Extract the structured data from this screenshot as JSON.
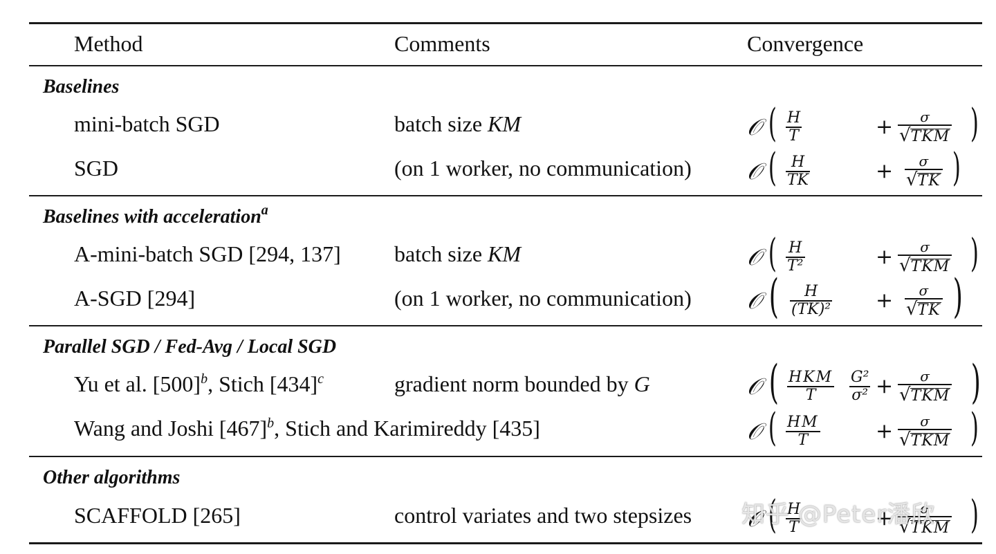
{
  "header": {
    "method": "Method",
    "comments": "Comments",
    "convergence": "Convergence"
  },
  "sections": [
    {
      "title": "Baselines",
      "title_footnote": "",
      "rows": [
        {
          "method": "mini-batch SGD",
          "comment_prefix": "batch size",
          "comment_math": "KM",
          "formula": {
            "num": "H",
            "den": "T",
            "mid_num": "",
            "mid_den": "",
            "sqrt": "TKM"
          }
        },
        {
          "method": "SGD",
          "comment_prefix": "(on 1 worker, no communication)",
          "comment_math": "",
          "formula": {
            "num": "H",
            "den": "TK",
            "mid_num": "",
            "mid_den": "",
            "sqrt": "TK"
          }
        }
      ]
    },
    {
      "title": "Baselines with acceleration",
      "title_footnote": "a",
      "rows": [
        {
          "method": "A-mini-batch SGD [294, 137]",
          "comment_prefix": "batch size",
          "comment_math": "KM",
          "formula": {
            "num": "H",
            "den": "T²",
            "mid_num": "",
            "mid_den": "",
            "sqrt": "TKM"
          }
        },
        {
          "method": "A-SGD [294]",
          "comment_prefix": "(on 1 worker, no communication)",
          "comment_math": "",
          "formula": {
            "num": "H",
            "den": "(TK)²",
            "mid_num": "",
            "mid_den": "",
            "sqrt": "TK"
          }
        }
      ]
    },
    {
      "title": "Parallel SGD / Fed-Avg / Local SGD",
      "title_footnote": "",
      "rows": [
        {
          "method_parts": [
            "Yu et al. [500]",
            "b",
            ", Stich [434]",
            "c"
          ],
          "comment_prefix": "gradient norm bounded by",
          "comment_math": "G",
          "formula": {
            "num": "HKM",
            "den": "T",
            "mid_num": "G²",
            "mid_den": "σ²",
            "sqrt": "TKM"
          }
        },
        {
          "method_parts": [
            "Wang and Joshi [467]",
            "b",
            ", Stich and Karimireddy [435]",
            ""
          ],
          "comment_prefix": "",
          "comment_math": "",
          "formula": {
            "num": "HM",
            "den": "T",
            "mid_num": "",
            "mid_den": "",
            "sqrt": "TKM"
          }
        }
      ]
    },
    {
      "title": "Other algorithms",
      "title_footnote": "",
      "rows": [
        {
          "method": "SCAFFOLD [265]",
          "comment_prefix": "control variates and two stepsizes",
          "comment_math": "",
          "formula": {
            "num": "H",
            "den": "T",
            "mid_num": "",
            "mid_den": "",
            "sqrt": "TKM"
          }
        }
      ]
    }
  ],
  "symbols": {
    "big_o": "𝒪",
    "paren_left": "(",
    "paren_right": ")",
    "plus": "+",
    "sigma": "σ",
    "sqrt": "√"
  },
  "watermark": "知乎 @Peter潘欣"
}
